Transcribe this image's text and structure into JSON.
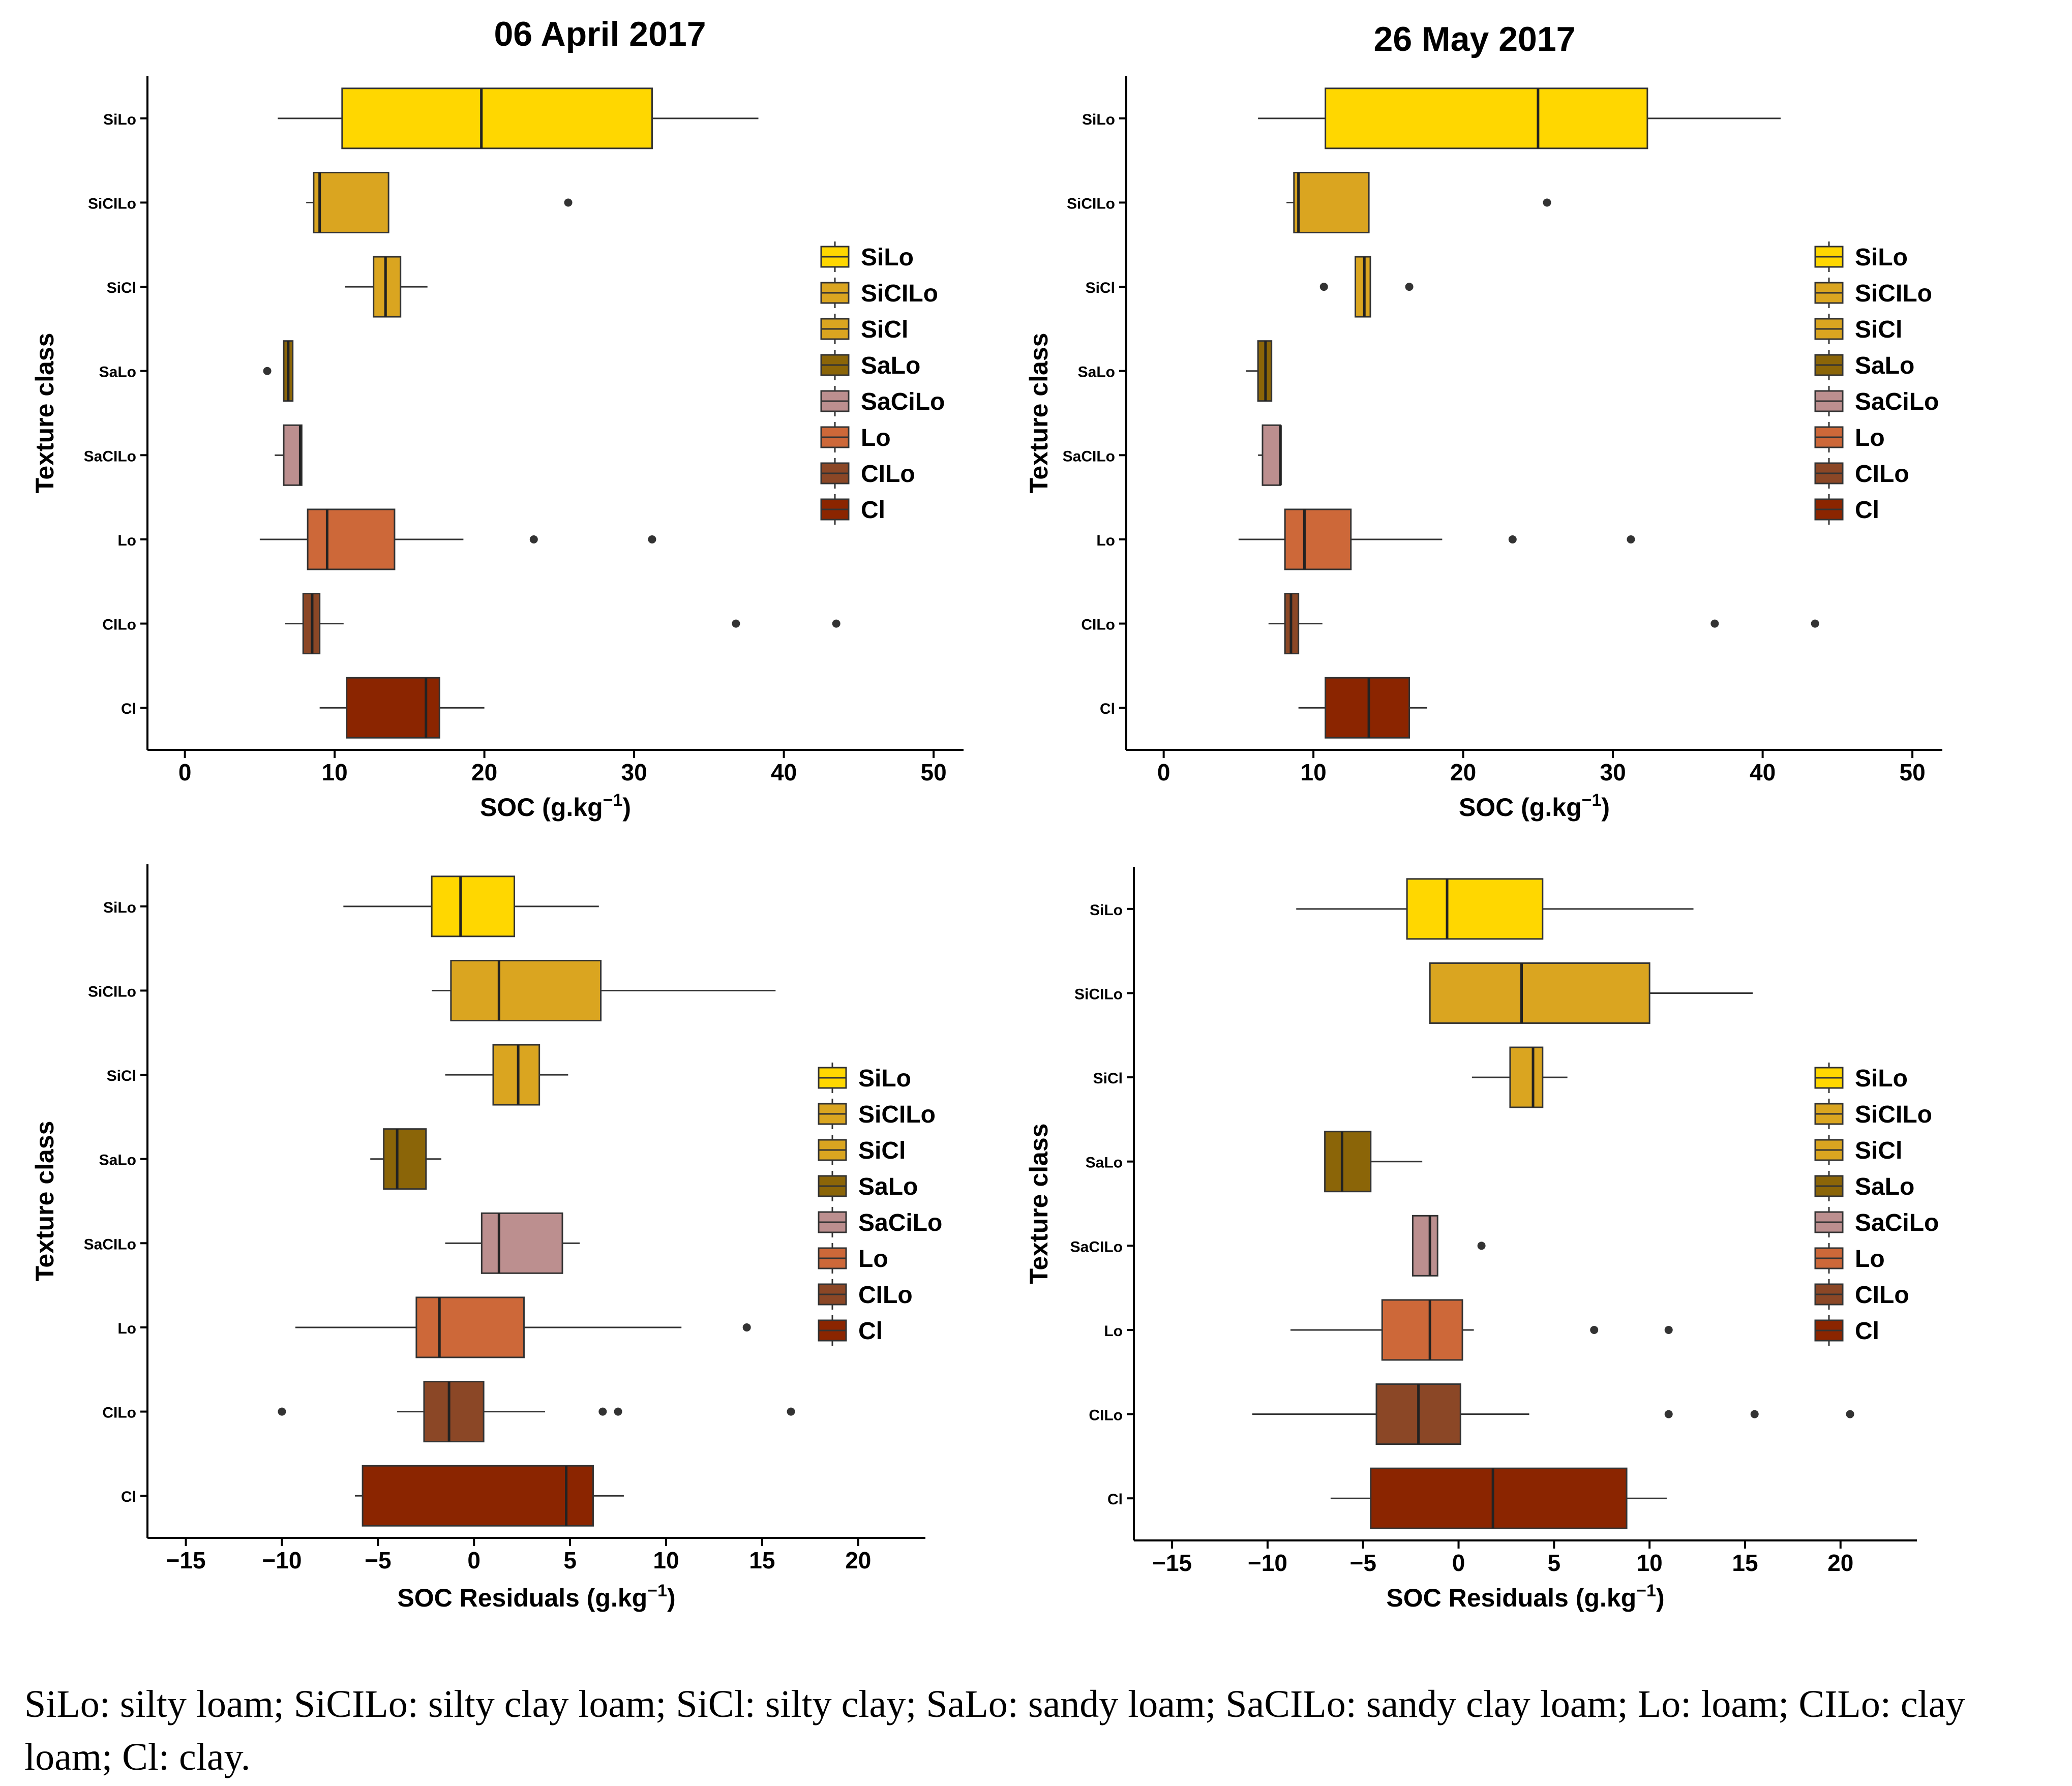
{
  "caption": "SiLo: silty loam; SiCILo: silty clay loam; SiCl: silty clay; SaLo: sandy loam; SaCILo: sandy clay loam; Lo: loam; CILo: clay loam; Cl: clay.",
  "colors": {
    "SiLo": "#FFD700",
    "SiCILo": "#DAA520",
    "SiCl": "#DAA520",
    "SaLo": "#8B6508",
    "SaCiLo": "#BC8F8F",
    "Lo": "#CD6839",
    "CILo": "#8B4726",
    "Cl": "#8B2500"
  },
  "legend": {
    "labels": [
      "SiLo",
      "SiCILo",
      "SiCl",
      "SaLo",
      "SaCiLo",
      "Lo",
      "CILo",
      "Cl"
    ],
    "keys": [
      "SiLo",
      "SiCILo",
      "SiCl",
      "SaLo",
      "SaCiLo",
      "Lo",
      "CILo",
      "Cl"
    ]
  },
  "chart_data": [
    {
      "type": "boxplot",
      "title": "06 April 2017",
      "xlabel": "SOC (g.kg",
      "xlabel_sup": "−1",
      "xlabel_end": ")",
      "ylabel": "Texture class",
      "xlim": [
        -2.5,
        52
      ],
      "xticks": [
        0,
        10,
        20,
        30,
        40,
        50
      ],
      "xtick_labels": [
        "0",
        "10",
        "20",
        "30",
        "40",
        "50"
      ],
      "categories": [
        "SiLo",
        "SiCILo",
        "SiCl",
        "SaLo",
        "SaCILo",
        "Lo",
        "CILo",
        "Cl"
      ],
      "boxes": [
        {
          "key": "SiLo",
          "wmin": 6.2,
          "q1": 10.5,
          "median": 19.8,
          "q3": 31.2,
          "wmax": 38.3,
          "outliers": []
        },
        {
          "key": "SiCILo",
          "wmin": 8.1,
          "q1": 8.6,
          "median": 9.0,
          "q3": 13.6,
          "wmax": 13.6,
          "outliers": [
            25.6
          ]
        },
        {
          "key": "SiCl",
          "wmin": 10.7,
          "q1": 12.6,
          "median": 13.4,
          "q3": 14.4,
          "wmax": 16.2,
          "outliers": []
        },
        {
          "key": "SaLo",
          "wmin": 6.6,
          "q1": 6.6,
          "median": 6.9,
          "q3": 7.2,
          "wmax": 7.2,
          "outliers": [
            5.5
          ]
        },
        {
          "key": "SaCiLo",
          "wmin": 6.0,
          "q1": 6.6,
          "median": 7.7,
          "q3": 7.8,
          "wmax": 7.8,
          "outliers": []
        },
        {
          "key": "Lo",
          "wmin": 5.0,
          "q1": 8.2,
          "median": 9.5,
          "q3": 14.0,
          "wmax": 18.6,
          "outliers": [
            23.3,
            31.2
          ]
        },
        {
          "key": "CILo",
          "wmin": 6.7,
          "q1": 7.9,
          "median": 8.5,
          "q3": 9.0,
          "wmax": 10.6,
          "outliers": [
            36.8,
            43.5
          ]
        },
        {
          "key": "Cl",
          "wmin": 9.0,
          "q1": 10.8,
          "median": 16.1,
          "q3": 17.0,
          "wmax": 20.0,
          "outliers": []
        }
      ]
    },
    {
      "type": "boxplot",
      "title": "26 May 2017",
      "xlabel": "SOC (g.kg",
      "xlabel_sup": "−1",
      "xlabel_end": ")",
      "ylabel": "Texture class",
      "xlim": [
        -2.5,
        52
      ],
      "xticks": [
        0,
        10,
        20,
        30,
        40,
        50
      ],
      "xtick_labels": [
        "0",
        "10",
        "20",
        "30",
        "40",
        "50"
      ],
      "categories": [
        "SiLo",
        "SiCILo",
        "SiCl",
        "SaLo",
        "SaCILo",
        "Lo",
        "CILo",
        "Cl"
      ],
      "boxes": [
        {
          "key": "SiLo",
          "wmin": 6.3,
          "q1": 10.8,
          "median": 25.0,
          "q3": 32.3,
          "wmax": 41.2,
          "outliers": []
        },
        {
          "key": "SiCILo",
          "wmin": 8.2,
          "q1": 8.7,
          "median": 9.0,
          "q3": 13.7,
          "wmax": 13.7,
          "outliers": [
            25.6
          ]
        },
        {
          "key": "SiCl",
          "wmin": 12.8,
          "q1": 12.8,
          "median": 13.4,
          "q3": 13.8,
          "wmax": 13.8,
          "outliers": [
            10.7,
            16.4
          ]
        },
        {
          "key": "SaLo",
          "wmin": 5.5,
          "q1": 6.3,
          "median": 6.8,
          "q3": 7.2,
          "wmax": 7.2,
          "outliers": []
        },
        {
          "key": "SaCiLo",
          "wmin": 6.3,
          "q1": 6.6,
          "median": 7.8,
          "q3": 7.8,
          "wmax": 7.8,
          "outliers": []
        },
        {
          "key": "Lo",
          "wmin": 5.0,
          "q1": 8.1,
          "median": 9.4,
          "q3": 12.5,
          "wmax": 18.6,
          "outliers": [
            23.3,
            31.2
          ]
        },
        {
          "key": "CILo",
          "wmin": 7.0,
          "q1": 8.1,
          "median": 8.5,
          "q3": 9.0,
          "wmax": 10.6,
          "outliers": [
            36.8,
            43.5
          ]
        },
        {
          "key": "Cl",
          "wmin": 9.0,
          "q1": 10.8,
          "median": 13.7,
          "q3": 16.4,
          "wmax": 17.6,
          "outliers": []
        }
      ]
    },
    {
      "type": "boxplot",
      "title": "",
      "xlabel": "SOC Residuals (g.kg",
      "xlabel_sup": "−1",
      "xlabel_end": ")",
      "ylabel": "Texture class",
      "xlim": [
        -17,
        23.5
      ],
      "xticks": [
        -15,
        -10,
        -5,
        0,
        5,
        10,
        15,
        20
      ],
      "xtick_labels": [
        "−15",
        "−10",
        "−5",
        "0",
        "5",
        "10",
        "15",
        "20"
      ],
      "categories": [
        "SiLo",
        "SiCILo",
        "SiCl",
        "SaLo",
        "SaCILo",
        "Lo",
        "CILo",
        "Cl"
      ],
      "boxes": [
        {
          "key": "SiLo",
          "wmin": -6.8,
          "q1": -2.2,
          "median": -0.7,
          "q3": 2.1,
          "wmax": 6.5,
          "outliers": []
        },
        {
          "key": "SiCILo",
          "wmin": -2.2,
          "q1": -1.2,
          "median": 1.3,
          "q3": 6.6,
          "wmax": 15.7,
          "outliers": []
        },
        {
          "key": "SiCl",
          "wmin": -1.5,
          "q1": 1.0,
          "median": 2.3,
          "q3": 3.4,
          "wmax": 4.9,
          "outliers": []
        },
        {
          "key": "SaLo",
          "wmin": -5.4,
          "q1": -4.7,
          "median": -4.0,
          "q3": -2.5,
          "wmax": -1.7,
          "outliers": []
        },
        {
          "key": "SaCiLo",
          "wmin": -1.5,
          "q1": 0.4,
          "median": 1.3,
          "q3": 4.6,
          "wmax": 5.5,
          "outliers": []
        },
        {
          "key": "Lo",
          "wmin": -9.3,
          "q1": -3.0,
          "median": -1.8,
          "q3": 2.6,
          "wmax": 10.8,
          "outliers": [
            14.2
          ]
        },
        {
          "key": "CILo",
          "wmin": -4.0,
          "q1": -2.6,
          "median": -1.3,
          "q3": 0.5,
          "wmax": 3.7,
          "outliers": [
            -10.0,
            6.7,
            7.5,
            16.5
          ]
        },
        {
          "key": "Cl",
          "wmin": -6.2,
          "q1": -5.8,
          "median": 4.8,
          "q3": 6.2,
          "wmax": 7.8,
          "outliers": []
        }
      ]
    },
    {
      "type": "boxplot",
      "title": "",
      "xlabel": "SOC Residuals (g.kg",
      "xlabel_sup": "−1",
      "xlabel_end": ")",
      "ylabel": "Texture class",
      "xlim": [
        -17,
        24
      ],
      "xticks": [
        -15,
        -10,
        -5,
        0,
        5,
        10,
        15,
        20
      ],
      "xtick_labels": [
        "−15",
        "−10",
        "−5",
        "0",
        "5",
        "10",
        "15",
        "20"
      ],
      "categories": [
        "SiLo",
        "SiCILo",
        "SiCl",
        "SaLo",
        "SaCILo",
        "Lo",
        "CILo",
        "Cl"
      ],
      "boxes": [
        {
          "key": "SiLo",
          "wmin": -8.5,
          "q1": -2.7,
          "median": -0.6,
          "q3": 4.4,
          "wmax": 12.3,
          "outliers": []
        },
        {
          "key": "SiCILo",
          "wmin": -1.5,
          "q1": -1.5,
          "median": 3.3,
          "q3": 10.0,
          "wmax": 15.4,
          "outliers": []
        },
        {
          "key": "SiCl",
          "wmin": 0.7,
          "q1": 2.7,
          "median": 3.9,
          "q3": 4.4,
          "wmax": 5.7,
          "outliers": []
        },
        {
          "key": "SaLo",
          "wmin": -7.0,
          "q1": -7.0,
          "median": -6.1,
          "q3": -4.6,
          "wmax": -1.9,
          "outliers": []
        },
        {
          "key": "SaCiLo",
          "wmin": -2.4,
          "q1": -2.4,
          "median": -1.5,
          "q3": -1.1,
          "wmax": -1.1,
          "outliers": [
            1.2
          ]
        },
        {
          "key": "Lo",
          "wmin": -8.8,
          "q1": -4.0,
          "median": -1.5,
          "q3": 0.2,
          "wmax": 0.8,
          "outliers": [
            7.1,
            11.0
          ]
        },
        {
          "key": "CILo",
          "wmin": -10.8,
          "q1": -4.3,
          "median": -2.1,
          "q3": 0.1,
          "wmax": 3.7,
          "outliers": [
            11.0,
            15.5,
            20.5
          ]
        },
        {
          "key": "Cl",
          "wmin": -6.7,
          "q1": -4.6,
          "median": 1.8,
          "q3": 8.8,
          "wmax": 10.9,
          "outliers": []
        }
      ]
    }
  ]
}
